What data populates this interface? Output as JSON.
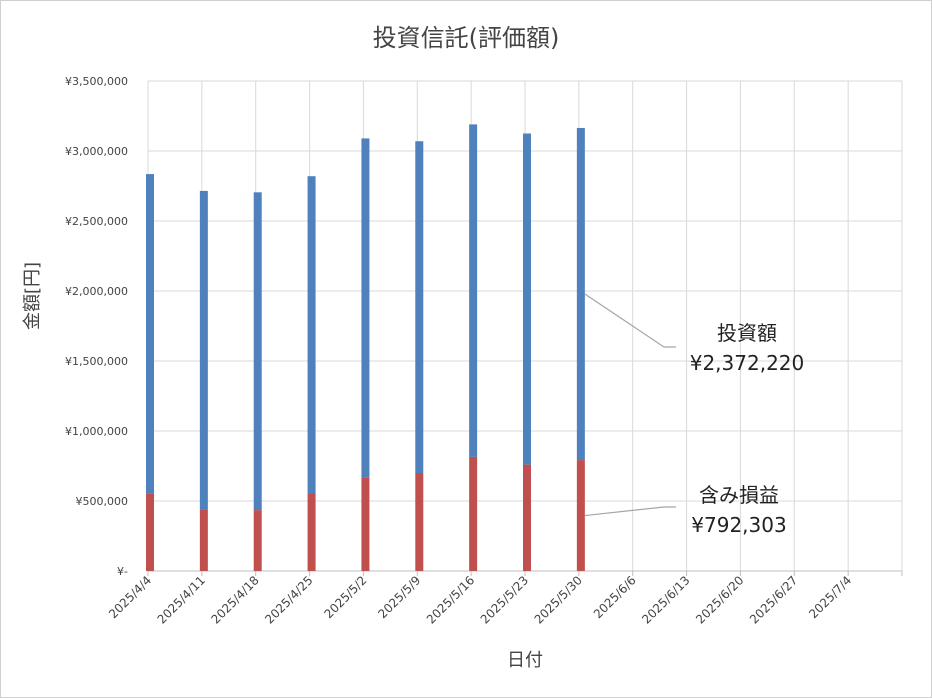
{
  "chart_data": {
    "type": "bar",
    "stacked": true,
    "title": "投資信託(評価額)",
    "xlabel": "日付",
    "ylabel": "金額[円]",
    "ylim": [
      0,
      3500000
    ],
    "yticks": [
      "¥-",
      "¥500,000",
      "¥1,000,000",
      "¥1,500,000",
      "¥2,000,000",
      "¥2,500,000",
      "¥3,000,000",
      "¥3,500,000"
    ],
    "ytick_values": [
      0,
      500000,
      1000000,
      1500000,
      2000000,
      2500000,
      3000000,
      3500000
    ],
    "categories": [
      "2025/4/4",
      "2025/4/11",
      "2025/4/18",
      "2025/4/25",
      "2025/5/2",
      "2025/5/9",
      "2025/5/16",
      "2025/5/23",
      "2025/5/30",
      "2025/6/6",
      "2025/6/13",
      "2025/6/20",
      "2025/6/27",
      "2025/7/4"
    ],
    "series": [
      {
        "name": "含み損益",
        "color": "#c0504d",
        "values": [
          555000,
          440000,
          435000,
          550000,
          665000,
          700000,
          815000,
          760000,
          792303,
          null,
          null,
          null,
          null,
          null
        ]
      },
      {
        "name": "投資額",
        "color": "#4f81bd",
        "values": [
          2280000,
          2275000,
          2270000,
          2270000,
          2425000,
          2370000,
          2375000,
          2365000,
          2372220,
          null,
          null,
          null,
          null,
          null
        ]
      }
    ],
    "grid": true,
    "annotations": [
      {
        "series": "投資額",
        "label": "投資額",
        "value_text": "¥2,372,220"
      },
      {
        "series": "含み損益",
        "label": "含み損益",
        "value_text": "¥792,303"
      }
    ]
  }
}
